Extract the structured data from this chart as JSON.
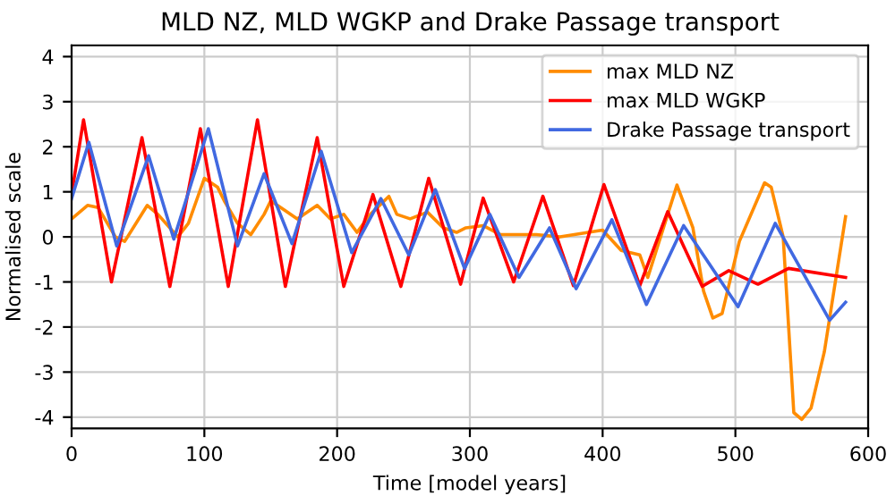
{
  "chart_data": {
    "type": "line",
    "title": "MLD NZ, MLD WGKP and Drake Passage transport",
    "xlabel": "Time [model years]",
    "ylabel": "Normalised scale",
    "xlim": [
      0,
      600
    ],
    "xticks": [
      0,
      100,
      200,
      300,
      400,
      500,
      600
    ],
    "ylim": [
      -4.25,
      4.25
    ],
    "yticks": [
      -4,
      -3,
      -2,
      -1,
      0,
      1,
      2,
      3,
      4
    ],
    "grid": true,
    "legend": "top right",
    "marker": "none",
    "line_style": "solid",
    "series": [
      {
        "name": "max MLD NZ",
        "color": "#ff8c00",
        "x": [
          0,
          12,
          20,
          33,
          40,
          57,
          65,
          80,
          88,
          100,
          110,
          115,
          125,
          135,
          145,
          150,
          160,
          170,
          185,
          195,
          205,
          215,
          225,
          239,
          245,
          255,
          268,
          280,
          290,
          297,
          310,
          323,
          350,
          368,
          400,
          414,
          428,
          434,
          456,
          468,
          476,
          483,
          490,
          503,
          522,
          527,
          536,
          544,
          550,
          557,
          567,
          583
        ],
        "values": [
          0.4,
          0.7,
          0.65,
          0,
          -0.1,
          0.7,
          0.5,
          0,
          0.3,
          1.3,
          1.1,
          0.8,
          0.3,
          0.05,
          0.5,
          0.8,
          0.6,
          0.4,
          0.7,
          0.4,
          0.5,
          0.1,
          0.5,
          0.9,
          0.5,
          0.4,
          0.55,
          0.2,
          0.1,
          0.2,
          0.25,
          0.05,
          0.05,
          0,
          0.15,
          -0.3,
          -0.4,
          -0.9,
          1.15,
          0.2,
          -1.2,
          -1.8,
          -1.7,
          -0.1,
          1.2,
          1.1,
          0,
          -3.9,
          -4.05,
          -3.8,
          -2.55,
          0.45
        ]
      },
      {
        "name": "max MLD WGKP",
        "color": "#ff0000",
        "x": [
          0,
          9,
          30,
          53,
          74,
          97,
          118,
          140,
          161,
          185,
          205,
          227,
          248,
          269,
          293,
          310,
          333,
          355,
          378,
          401,
          428,
          449,
          475,
          495,
          517,
          540,
          583
        ],
        "values": [
          0.95,
          2.6,
          -1.0,
          2.2,
          -1.1,
          2.4,
          -1.1,
          2.6,
          -1.1,
          2.2,
          -1.1,
          0.94,
          -1.1,
          1.3,
          -1.05,
          0.86,
          -1.0,
          0.9,
          -1.08,
          1.16,
          -1.08,
          0.56,
          -1.1,
          -0.75,
          -1.05,
          -0.7,
          -0.9
        ]
      },
      {
        "name": "Drake Passage transport",
        "color": "#4169e1",
        "x": [
          0,
          13,
          34,
          58,
          77,
          103,
          125,
          145,
          166,
          188,
          211,
          233,
          254,
          274,
          296,
          315,
          337,
          360,
          380,
          407,
          433,
          461,
          502,
          530,
          571,
          583
        ],
        "values": [
          0.85,
          2.1,
          -0.2,
          1.8,
          -0.05,
          2.4,
          -0.2,
          1.4,
          -0.15,
          1.9,
          -0.35,
          0.85,
          -0.4,
          1.05,
          -0.7,
          0.5,
          -0.9,
          0.2,
          -1.15,
          0.38,
          -1.5,
          0.25,
          -1.55,
          0.3,
          -1.85,
          -1.45
        ]
      }
    ]
  }
}
